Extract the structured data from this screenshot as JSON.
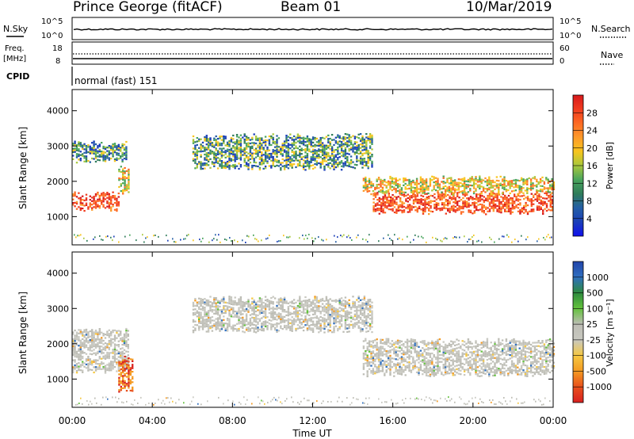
{
  "header": {
    "station": "Prince George (fitACF)",
    "beam": "Beam 01",
    "date": "10/Mar/2019"
  },
  "panels": {
    "nsky": {
      "label": "N.Sky",
      "ticks": [
        "10^5",
        "10^0"
      ],
      "right_label": "N.Search",
      "right_ticks": [
        "10^5",
        "10^0"
      ]
    },
    "freq": {
      "label": "Freq.",
      "unit": "[MHz]",
      "ticks": [
        "18",
        "8"
      ],
      "right_label": "Nave",
      "right_ticks": [
        "60",
        "0"
      ]
    },
    "cpid": {
      "label": "CPID",
      "text": "normal (fast) 151"
    }
  },
  "chart_data": [
    {
      "type": "heatmap",
      "name": "power",
      "ylabel": "Slant Range [km]",
      "xlabel": "Time UT",
      "x_ticks": [
        "00:00",
        "04:00",
        "08:00",
        "12:00",
        "16:00",
        "20:00",
        "00:00"
      ],
      "y_ticks": [
        "1000",
        "2000",
        "3000",
        "4000"
      ],
      "xlim": [
        0,
        24
      ],
      "ylim": [
        200,
        4600
      ],
      "colorbar": {
        "label": "Power [dB]",
        "ticks": [
          "28",
          "24",
          "20",
          "16",
          "12",
          "8",
          "4"
        ],
        "colors": [
          "#d7191c",
          "#f03b1e",
          "#fd6a23",
          "#fd9a2a",
          "#f7c51e",
          "#a8c83c",
          "#4aa55d",
          "#2f7c5a",
          "#245ea6",
          "#1a3eb8",
          "#1010ee"
        ]
      },
      "bands": [
        {
          "t": [
            0,
            2.3
          ],
          "r": [
            1250,
            1650
          ],
          "level": "high"
        },
        {
          "t": [
            2.3,
            2.8
          ],
          "r": [
            1700,
            2400
          ],
          "level": "mid"
        },
        {
          "t": [
            0,
            2.7
          ],
          "r": [
            2600,
            3100
          ],
          "level": "low"
        },
        {
          "t": [
            6.0,
            15.0
          ],
          "r": [
            2400,
            3300
          ],
          "level": "low"
        },
        {
          "t": [
            15.0,
            24.0
          ],
          "r": [
            1150,
            1650
          ],
          "level": "high"
        },
        {
          "t": [
            14.5,
            24.0
          ],
          "r": [
            1700,
            2100
          ],
          "level": "mid"
        }
      ]
    },
    {
      "type": "heatmap",
      "name": "velocity",
      "ylabel": "Slant Range [km]",
      "xlabel": "Time UT",
      "x_ticks": [
        "00:00",
        "04:00",
        "08:00",
        "12:00",
        "16:00",
        "20:00",
        "00:00"
      ],
      "y_ticks": [
        "1000",
        "2000",
        "3000",
        "4000"
      ],
      "xlim": [
        0,
        24
      ],
      "ylim": [
        200,
        4600
      ],
      "colorbar": {
        "label": "Velocity [m s⁻¹]",
        "ticks": [
          "1000",
          "500",
          "100",
          "25",
          "-25",
          "-100",
          "-500",
          "-1000"
        ],
        "colors": [
          "#2244aa",
          "#2f6fbf",
          "#2e8b3e",
          "#63c23c",
          "#bdbdb5",
          "#c8c8c0",
          "#f5c842",
          "#f49a22",
          "#e8501c",
          "#d82020"
        ]
      },
      "bands": [
        {
          "t": [
            0,
            2.8
          ],
          "r": [
            1250,
            2400
          ],
          "level": "zero"
        },
        {
          "t": [
            2.3,
            3.0
          ],
          "r": [
            700,
            1600
          ],
          "level": "negative"
        },
        {
          "t": [
            6.0,
            15.0
          ],
          "r": [
            2400,
            3300
          ],
          "level": "zero"
        },
        {
          "t": [
            14.5,
            24.0
          ],
          "r": [
            1150,
            2100
          ],
          "level": "zero"
        }
      ]
    }
  ]
}
